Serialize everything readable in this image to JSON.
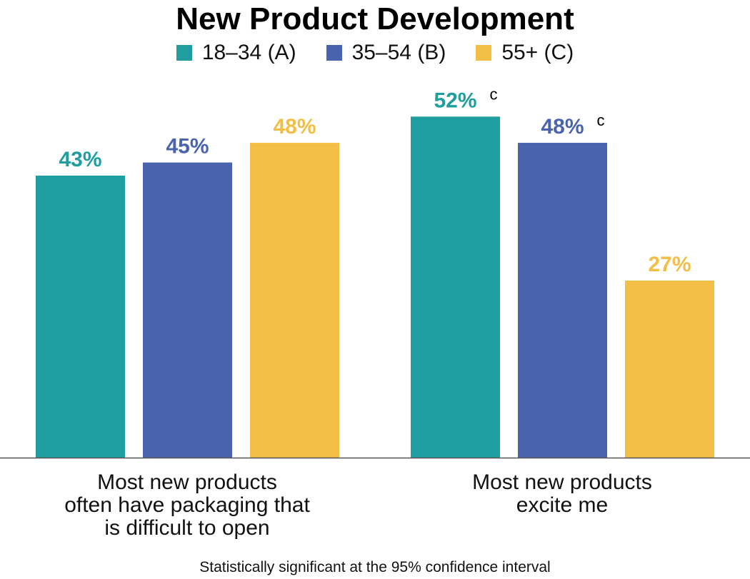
{
  "chart_data": {
    "type": "bar",
    "title": "New Product Development",
    "categories": [
      "Most new products often have packaging that is difficult to open",
      "Most new products excite me"
    ],
    "category_lines": [
      [
        "Most new products",
        "often have packaging that",
        "is difficult to open"
      ],
      [
        "Most new products",
        "excite me"
      ]
    ],
    "series": [
      {
        "name": "18–34 (A)",
        "color": "#1e9e9f",
        "values": [
          43,
          52
        ],
        "labels": [
          "43%",
          "52%"
        ],
        "sig": [
          "",
          "c"
        ]
      },
      {
        "name": "35–54 (B)",
        "color": "#4a63ae",
        "values": [
          45,
          48
        ],
        "labels": [
          "45%",
          "48%"
        ],
        "sig": [
          "",
          "c"
        ]
      },
      {
        "name": "55+ (C)",
        "color": "#f3be45",
        "values": [
          48,
          27
        ],
        "labels": [
          "48%",
          "27%"
        ],
        "sig": [
          "",
          ""
        ]
      }
    ],
    "ylim": [
      0,
      70
    ],
    "grid": false,
    "legend": "top-center",
    "footnote": "Statistically significant at the 95% confidence interval"
  }
}
